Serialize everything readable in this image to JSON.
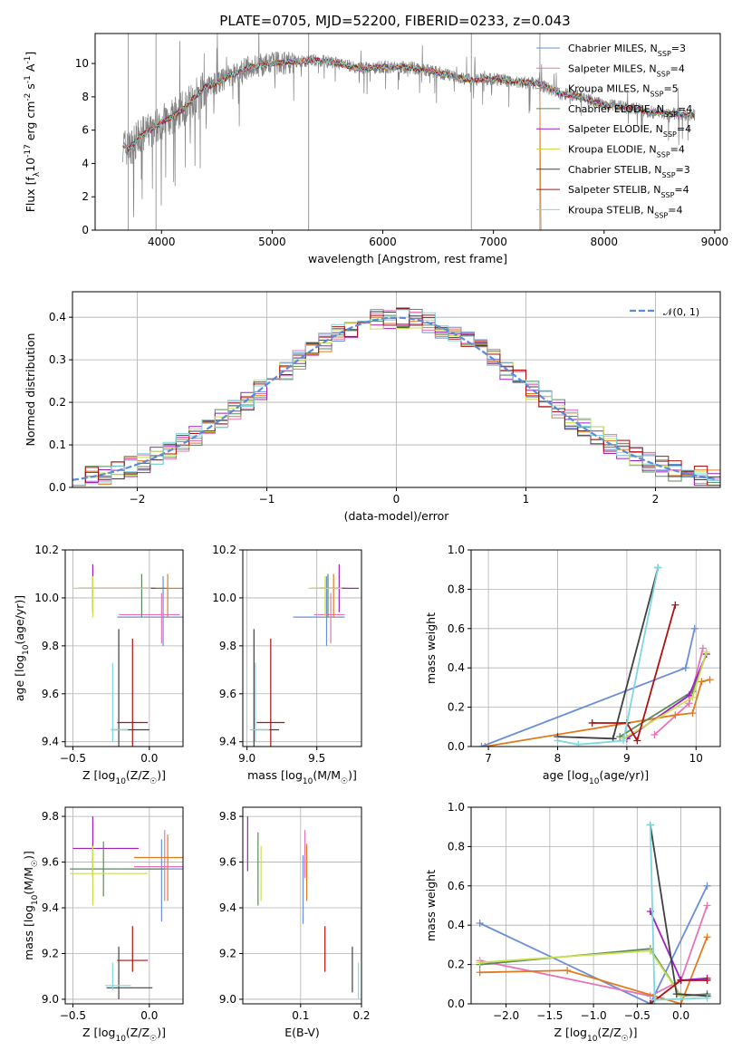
{
  "figure": {
    "title": "PLATE=0705, MJD=52200, FIBERID=0233, z=0.043"
  },
  "models": [
    {
      "name": "Chabrier MILES",
      "nssp": "3",
      "color": "#6a8fd8"
    },
    {
      "name": "Salpeter MILES",
      "nssp": "4",
      "color": "#e673b8"
    },
    {
      "name": "Kroupa MILES",
      "nssp": "5",
      "color": "#e07b20"
    },
    {
      "name": "Chabrier ELODIE",
      "nssp": "4",
      "color": "#5b8a5b"
    },
    {
      "name": "Salpeter ELODIE",
      "nssp": "4",
      "color": "#a020c0"
    },
    {
      "name": "Kroupa ELODIE",
      "nssp": "4",
      "color": "#c8e050"
    },
    {
      "name": "Chabrier STELIB",
      "nssp": "3",
      "color": "#404040"
    },
    {
      "name": "Salpeter STELIB",
      "nssp": "4",
      "color": "#b01010"
    },
    {
      "name": "Kroupa STELIB",
      "nssp": "4",
      "color": "#7ed8de"
    }
  ],
  "chart_data": [
    {
      "id": "spectrum",
      "type": "line",
      "xlabel": "wavelength [Angstrom, rest frame]",
      "ylabel": "Flux [f_λ10^-17 erg cm^-2 s^-1 A^-1]",
      "xlim": [
        3400,
        9050
      ],
      "ylim": [
        0,
        11.8
      ],
      "xticks": [
        4000,
        5000,
        6000,
        7000,
        8000,
        9000
      ],
      "yticks": [
        0,
        2,
        4,
        6,
        8,
        10
      ],
      "data_color": "#808080",
      "continuum": {
        "x": [
          3650,
          3700,
          3800,
          3900,
          4000,
          4100,
          4200,
          4300,
          4400,
          4500,
          4600,
          4800,
          5000,
          5200,
          5400,
          5600,
          5800,
          6000,
          6200,
          6400,
          6600,
          6800,
          7000,
          7200,
          7400,
          7600,
          7800,
          8000,
          8200,
          8400,
          8600,
          8800
        ],
        "y": [
          5.2,
          4.8,
          5.6,
          6.0,
          6.5,
          6.8,
          7.3,
          8.0,
          8.6,
          8.8,
          9.2,
          9.8,
          10.0,
          10.1,
          10.2,
          10.0,
          9.7,
          9.8,
          9.8,
          9.6,
          9.3,
          9.0,
          9.1,
          8.9,
          8.8,
          8.2,
          8.0,
          7.5,
          7.4,
          7.1,
          7.0,
          6.9
        ]
      }
    },
    {
      "id": "residuals",
      "type": "histogram",
      "xlabel": "(data-model)/error",
      "ylabel": "Normed distribution",
      "xlim": [
        -2.5,
        2.5
      ],
      "ylim": [
        0,
        0.46
      ],
      "xticks": [
        -2,
        -1,
        0,
        1,
        2
      ],
      "yticks": [
        0.0,
        0.1,
        0.2,
        0.3,
        0.4
      ],
      "reference": {
        "label": "𝒩(0, 1)",
        "mean": 0,
        "sigma": 1,
        "color": "#5b8bd8"
      }
    },
    {
      "id": "age-vs-Z",
      "type": "errorbar",
      "xlabel": "Z [log10(Z/Z☉)]",
      "ylabel": "age [log10(age/yr)]",
      "xlim": [
        -0.55,
        0.22
      ],
      "ylim": [
        9.38,
        10.2
      ],
      "xticks": [
        -0.5,
        0.0
      ],
      "yticks": [
        9.4,
        9.6,
        9.8,
        10.0,
        10.2
      ],
      "points": [
        {
          "model": 0,
          "x": 0.09,
          "y": 9.92,
          "xerr": [
            0.3,
            0.18
          ],
          "yerr": [
            0.12,
            0.17
          ]
        },
        {
          "model": 1,
          "x": 0.08,
          "y": 9.93,
          "xerr": [
            0.28,
            0.12
          ],
          "yerr": [
            0.12,
            0.09
          ]
        },
        {
          "model": 2,
          "x": 0.12,
          "y": 10.04,
          "xerr": [
            0.22,
            0.1
          ],
          "yerr": [
            0.12,
            0.06
          ]
        },
        {
          "model": 3,
          "x": -0.05,
          "y": 10.04,
          "xerr": [
            0.4,
            0.16
          ],
          "yerr": [
            0.12,
            0.06
          ]
        },
        {
          "model": 4,
          "x": -0.37,
          "y": 10.04,
          "xerr": [
            0.1,
            0.41
          ],
          "yerr": [
            0.1,
            0.1
          ]
        },
        {
          "model": 5,
          "x": -0.37,
          "y": 10.04,
          "xerr": [
            0.13,
            0.38
          ],
          "yerr": [
            0.12,
            0.05
          ]
        },
        {
          "model": 6,
          "x": -0.2,
          "y": 9.45,
          "xerr": [
            0.05,
            0.2
          ],
          "yerr": [
            0.08,
            0.42
          ]
        },
        {
          "model": 7,
          "x": -0.11,
          "y": 9.48,
          "xerr": [
            0.1,
            0.1
          ],
          "yerr": [
            0.12,
            0.35
          ]
        },
        {
          "model": 8,
          "x": -0.24,
          "y": 9.45,
          "xerr": [
            0.01,
            0.1
          ],
          "yerr": [
            0.05,
            0.28
          ]
        }
      ]
    },
    {
      "id": "age-vs-mass",
      "type": "errorbar",
      "xlabel": "mass [log10(M/M☉)]",
      "ylabel": "",
      "xlim": [
        8.97,
        9.82
      ],
      "ylim": [
        9.38,
        10.2
      ],
      "xticks": [
        9.0,
        9.5
      ],
      "yticks": [
        9.4,
        9.6,
        9.8,
        10.0,
        10.2
      ],
      "points": [
        {
          "model": 0,
          "x": 9.57,
          "y": 9.92,
          "xerr": [
            0.24,
            0.13
          ],
          "yerr": [
            0.12,
            0.17
          ]
        },
        {
          "model": 1,
          "x": 9.6,
          "y": 9.93,
          "xerr": [
            0.12,
            0.1
          ],
          "yerr": [
            0.12,
            0.09
          ]
        },
        {
          "model": 2,
          "x": 9.62,
          "y": 10.04,
          "xerr": [
            0.1,
            0.1
          ],
          "yerr": [
            0.12,
            0.06
          ]
        },
        {
          "model": 3,
          "x": 9.58,
          "y": 10.04,
          "xerr": [
            0.12,
            0.12
          ],
          "yerr": [
            0.12,
            0.06
          ]
        },
        {
          "model": 4,
          "x": 9.66,
          "y": 10.04,
          "xerr": [
            0.14,
            0.14
          ],
          "yerr": [
            0.1,
            0.1
          ]
        },
        {
          "model": 5,
          "x": 9.56,
          "y": 10.04,
          "xerr": [
            0.12,
            0.12
          ],
          "yerr": [
            0.12,
            0.05
          ]
        },
        {
          "model": 6,
          "x": 9.05,
          "y": 9.45,
          "xerr": [
            0.01,
            0.18
          ],
          "yerr": [
            0.08,
            0.42
          ]
        },
        {
          "model": 7,
          "x": 9.17,
          "y": 9.48,
          "xerr": [
            0.1,
            0.1
          ],
          "yerr": [
            0.12,
            0.35
          ]
        },
        {
          "model": 8,
          "x": 9.06,
          "y": 9.45,
          "xerr": [
            0.04,
            0.1
          ],
          "yerr": [
            0.05,
            0.28
          ]
        }
      ]
    },
    {
      "id": "weights-vs-age",
      "type": "line",
      "xlabel": "age [log10(age/yr)]",
      "ylabel": "mass weight",
      "xlim": [
        6.75,
        10.35
      ],
      "ylim": [
        0,
        1.0
      ],
      "xticks": [
        7,
        8,
        9,
        10
      ],
      "yticks": [
        0.0,
        0.2,
        0.4,
        0.6,
        0.8,
        1.0
      ],
      "series": [
        {
          "model": 0,
          "x": [
            6.9,
            9.85,
            9.98
          ],
          "y": [
            0.0,
            0.4,
            0.6
          ]
        },
        {
          "model": 1,
          "x": [
            9.4,
            9.9,
            10.1
          ],
          "y": [
            0.06,
            0.22,
            0.5
          ]
        },
        {
          "model": 2,
          "x": [
            6.95,
            9.7,
            9.95,
            10.08,
            10.2
          ],
          "y": [
            0.0,
            0.16,
            0.17,
            0.33,
            0.34
          ]
        },
        {
          "model": 3,
          "x": [
            8.9,
            9.95,
            10.15
          ],
          "y": [
            0.05,
            0.28,
            0.47
          ]
        },
        {
          "model": 4,
          "x": [
            9.0,
            9.9,
            10.15
          ],
          "y": [
            0.04,
            0.26,
            0.47
          ]
        },
        {
          "model": 5,
          "x": [
            8.95,
            9.95,
            10.15
          ],
          "y": [
            0.04,
            0.25,
            0.48
          ]
        },
        {
          "model": 6,
          "x": [
            8.0,
            8.8,
            9.45
          ],
          "y": [
            0.05,
            0.04,
            0.91
          ]
        },
        {
          "model": 7,
          "x": [
            8.5,
            9.0,
            9.15,
            9.7
          ],
          "y": [
            0.12,
            0.12,
            0.03,
            0.72
          ]
        },
        {
          "model": 8,
          "x": [
            8.0,
            8.3,
            8.95,
            9.45
          ],
          "y": [
            0.03,
            0.01,
            0.03,
            0.91
          ]
        }
      ]
    },
    {
      "id": "mass-vs-Z",
      "type": "errorbar",
      "xlabel": "Z [log10(Z/Z☉)]",
      "ylabel": "mass [log10(M/M☉)]",
      "xlim": [
        -0.55,
        0.22
      ],
      "ylim": [
        8.98,
        9.84
      ],
      "xticks": [
        -0.5,
        0.0
      ],
      "yticks": [
        9.0,
        9.2,
        9.4,
        9.6,
        9.8
      ],
      "points": [
        {
          "model": 0,
          "x": 0.08,
          "y": 9.57,
          "xerr": [
            0.2,
            0.18
          ],
          "yerr": [
            0.23,
            0.13
          ]
        },
        {
          "model": 1,
          "x": 0.1,
          "y": 9.58,
          "xerr": [
            0.2,
            0.12
          ],
          "yerr": [
            0.15,
            0.16
          ]
        },
        {
          "model": 2,
          "x": 0.12,
          "y": 9.62,
          "xerr": [
            0.22,
            0.18
          ],
          "yerr": [
            0.19,
            0.1
          ]
        },
        {
          "model": 3,
          "x": -0.3,
          "y": 9.57,
          "xerr": [
            0.22,
            0.4
          ],
          "yerr": [
            0.12,
            0.12
          ]
        },
        {
          "model": 4,
          "x": -0.37,
          "y": 9.66,
          "xerr": [
            0.13,
            0.3
          ],
          "yerr": [
            0.12,
            0.14
          ]
        },
        {
          "model": 5,
          "x": -0.37,
          "y": 9.55,
          "xerr": [
            0.15,
            0.36
          ],
          "yerr": [
            0.14,
            0.12
          ]
        },
        {
          "model": 6,
          "x": -0.2,
          "y": 9.05,
          "xerr": [
            0.08,
            0.22
          ],
          "yerr": [
            0.05,
            0.18
          ]
        },
        {
          "model": 7,
          "x": -0.11,
          "y": 9.17,
          "xerr": [
            0.1,
            0.1
          ],
          "yerr": [
            0.05,
            0.15
          ]
        },
        {
          "model": 8,
          "x": -0.24,
          "y": 9.06,
          "xerr": [
            0.05,
            0.12
          ],
          "yerr": [
            0.02,
            0.1
          ]
        }
      ]
    },
    {
      "id": "mass-vs-EBV",
      "type": "errorbar",
      "xlabel": "E(B-V)",
      "ylabel": "",
      "xlim": [
        0.005,
        0.2
      ],
      "ylim": [
        8.98,
        9.84
      ],
      "xticks": [
        0.1,
        0.2
      ],
      "yticks": [
        9.0,
        9.2,
        9.4,
        9.6,
        9.8
      ],
      "points": [
        {
          "model": 0,
          "x": 0.104,
          "y": 9.45,
          "xerr": [
            0.0,
            0.0
          ],
          "yerr": [
            0.12,
            0.18
          ]
        },
        {
          "model": 1,
          "x": 0.107,
          "y": 9.61,
          "xerr": [
            0.0,
            0.0
          ],
          "yerr": [
            0.08,
            0.13
          ]
        },
        {
          "model": 2,
          "x": 0.11,
          "y": 9.55,
          "xerr": [
            0.0,
            0.0
          ],
          "yerr": [
            0.12,
            0.13
          ]
        },
        {
          "model": 3,
          "x": 0.03,
          "y": 9.57,
          "xerr": [
            0.0,
            0.0
          ],
          "yerr": [
            0.16,
            0.16
          ]
        },
        {
          "model": 4,
          "x": 0.013,
          "y": 9.66,
          "xerr": [
            0.0,
            0.0
          ],
          "yerr": [
            0.1,
            0.14
          ]
        },
        {
          "model": 5,
          "x": 0.035,
          "y": 9.55,
          "xerr": [
            0.0,
            0.0
          ],
          "yerr": [
            0.12,
            0.12
          ]
        },
        {
          "model": 6,
          "x": 0.185,
          "y": 9.12,
          "xerr": [
            0.0,
            0.0
          ],
          "yerr": [
            0.09,
            0.11
          ]
        },
        {
          "model": 7,
          "x": 0.14,
          "y": 9.22,
          "xerr": [
            0.0,
            0.0
          ],
          "yerr": [
            0.1,
            0.1
          ]
        },
        {
          "model": 8,
          "x": 0.195,
          "y": 9.03,
          "xerr": [
            0.0,
            0.0
          ],
          "yerr": [
            0.03,
            0.13
          ]
        }
      ]
    },
    {
      "id": "weights-vs-Z",
      "type": "line",
      "xlabel": "Z [log10(Z/Z☉)]",
      "ylabel": "mass weight",
      "xlim": [
        -2.4,
        0.45
      ],
      "ylim": [
        0,
        1.0
      ],
      "xticks": [
        -2.0,
        -1.5,
        -1.0,
        -0.5,
        0.0
      ],
      "yticks": [
        0.0,
        0.2,
        0.4,
        0.6,
        0.8,
        1.0
      ],
      "series": [
        {
          "model": 0,
          "x": [
            -2.3,
            -0.35,
            0.3
          ],
          "y": [
            0.41,
            0.0,
            0.6
          ]
        },
        {
          "model": 1,
          "x": [
            -2.3,
            -0.35,
            0.0,
            0.3
          ],
          "y": [
            0.22,
            0.04,
            0.12,
            0.5
          ]
        },
        {
          "model": 2,
          "x": [
            -2.3,
            -1.3,
            0.0,
            0.3
          ],
          "y": [
            0.16,
            0.17,
            0.0,
            0.34
          ]
        },
        {
          "model": 3,
          "x": [
            -2.3,
            -0.35,
            0.0,
            0.3
          ],
          "y": [
            0.2,
            0.28,
            0.04,
            0.05
          ]
        },
        {
          "model": 4,
          "x": [
            -0.35,
            0.0,
            0.3
          ],
          "y": [
            0.47,
            0.12,
            0.13
          ]
        },
        {
          "model": 5,
          "x": [
            -2.3,
            -0.35,
            0.0
          ],
          "y": [
            0.21,
            0.27,
            0.04
          ]
        },
        {
          "model": 6,
          "x": [
            -0.35,
            -0.05,
            0.3
          ],
          "y": [
            0.91,
            0.05,
            0.04
          ]
        },
        {
          "model": 7,
          "x": [
            -0.35,
            0.0,
            0.3
          ],
          "y": [
            0.0,
            0.12,
            0.12
          ]
        },
        {
          "model": 8,
          "x": [
            -0.35,
            -0.3,
            0.3
          ],
          "y": [
            0.91,
            0.02,
            0.03
          ]
        }
      ]
    }
  ]
}
